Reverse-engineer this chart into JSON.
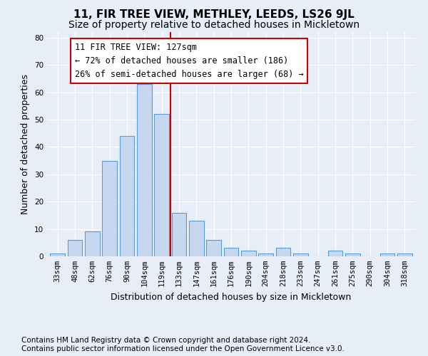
{
  "title": "11, FIR TREE VIEW, METHLEY, LEEDS, LS26 9JL",
  "subtitle": "Size of property relative to detached houses in Mickletown",
  "xlabel": "Distribution of detached houses by size in Mickletown",
  "ylabel": "Number of detached properties",
  "categories": [
    "33sqm",
    "48sqm",
    "62sqm",
    "76sqm",
    "90sqm",
    "104sqm",
    "119sqm",
    "133sqm",
    "147sqm",
    "161sqm",
    "176sqm",
    "190sqm",
    "204sqm",
    "218sqm",
    "233sqm",
    "247sqm",
    "261sqm",
    "275sqm",
    "290sqm",
    "304sqm",
    "318sqm"
  ],
  "values": [
    1,
    6,
    9,
    35,
    44,
    63,
    52,
    16,
    13,
    6,
    3,
    2,
    1,
    3,
    1,
    0,
    2,
    1,
    0,
    1,
    1
  ],
  "bar_color": "#c5d8f0",
  "bar_edge_color": "#5b9bd5",
  "vline_index": 6.5,
  "vline_color": "#cc0000",
  "annotation_text": "11 FIR TREE VIEW: 127sqm\n← 72% of detached houses are smaller (186)\n26% of semi-detached houses are larger (68) →",
  "annotation_box_color": "#ffffff",
  "annotation_box_edge_color": "#cc0000",
  "ylim": [
    0,
    82
  ],
  "yticks": [
    0,
    10,
    20,
    30,
    40,
    50,
    60,
    70,
    80
  ],
  "footer_text": "Contains HM Land Registry data © Crown copyright and database right 2024.\nContains public sector information licensed under the Open Government Licence v3.0.",
  "background_color": "#e8eef7",
  "axes_background_color": "#e8eef7",
  "title_fontsize": 11,
  "subtitle_fontsize": 10,
  "tick_fontsize": 7.5,
  "label_fontsize": 9,
  "footer_fontsize": 7.5,
  "annotation_fontsize": 8.5
}
